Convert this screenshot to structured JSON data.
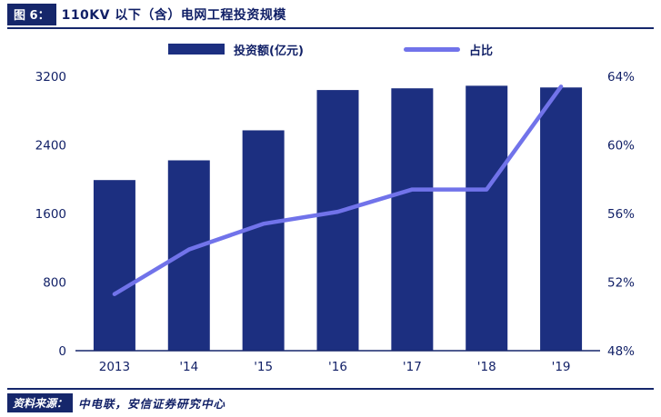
{
  "header": {
    "figure_label": "图 6：",
    "title": "110KV 以下（含）电网工程投资规模"
  },
  "colors": {
    "navy_text": "#101f66",
    "bar": "#1c2f80",
    "line": "#7173ea",
    "axis_line": "#16276b"
  },
  "chart_data": {
    "type": "bar+line",
    "title": "110KV 以下（含）电网工程投资规模",
    "categories": [
      "2013",
      "'14",
      "'15",
      "'16",
      "'17",
      "'18",
      "'19"
    ],
    "series": [
      {
        "name": "投资额(亿元)",
        "type": "bar",
        "axis": "left",
        "color": "#1c2f80",
        "values": [
          1990,
          2220,
          2570,
          3040,
          3060,
          3090,
          3070
        ]
      },
      {
        "name": "占比",
        "type": "line",
        "axis": "right",
        "color": "#7173ea",
        "values": [
          51.3,
          53.9,
          55.4,
          56.1,
          57.4,
          57.4,
          63.4
        ]
      }
    ],
    "left_axis": {
      "min": 0,
      "max": 3200,
      "tick_values": [
        0,
        800,
        1600,
        2400,
        3200
      ],
      "tick_labels": [
        "0",
        "800",
        "1600",
        "2400",
        "3200"
      ]
    },
    "right_axis": {
      "min": 48,
      "max": 64,
      "tick_values": [
        48,
        52,
        56,
        60,
        64
      ],
      "tick_labels": [
        "48%",
        "52%",
        "56%",
        "60%",
        "64%"
      ]
    },
    "legend_position": "top",
    "grid": false
  },
  "footer": {
    "source_label": "资料来源：",
    "source_text": "中电联，安信证券研究中心"
  }
}
